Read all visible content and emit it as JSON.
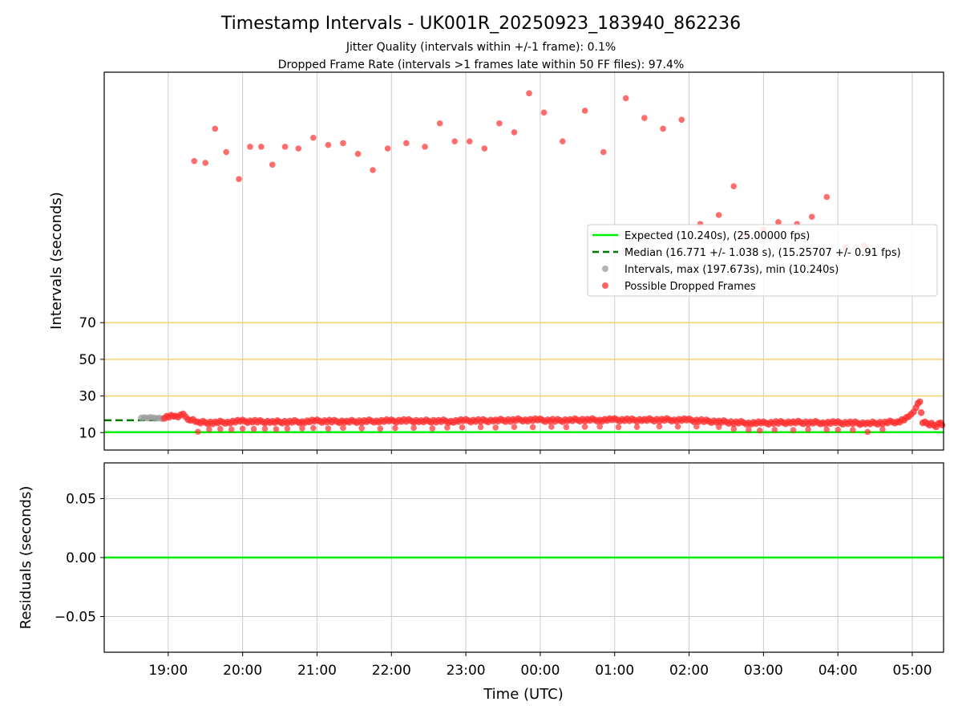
{
  "chart_data": {
    "type": "scatter",
    "title": "Timestamp Intervals - UK001R_20250923_183940_862236",
    "subtitles": [
      "Jitter Quality (intervals within +/-1 frame): 0.1%",
      "Dropped Frame Rate (intervals >1 frames late within 50 FF files): 97.4%"
    ],
    "xlabel": "Time (UTC)",
    "x_ticks": [
      "19:00",
      "20:00",
      "21:00",
      "22:00",
      "23:00",
      "00:00",
      "01:00",
      "02:00",
      "03:00",
      "04:00",
      "05:00"
    ],
    "xlim_hours": [
      18.14,
      29.42
    ],
    "x_tick_hours": [
      19,
      20,
      21,
      22,
      23,
      24,
      25,
      26,
      27,
      28,
      29
    ],
    "grid": true,
    "legend_position": "center-right",
    "panels": [
      {
        "name": "intervals",
        "ylabel": "Intervals (seconds)",
        "y_ticks": [
          10,
          30,
          50,
          70
        ],
        "y_scale": "broken-upper",
        "reference_lines": [
          {
            "y": 30,
            "color": "#f2d57a"
          },
          {
            "y": 50,
            "color": "#f2d57a"
          },
          {
            "y": 70,
            "color": "#f2d57a"
          }
        ],
        "series": [
          {
            "name": "Expected (10.240s), (25.00000 fps)",
            "kind": "line",
            "y": 10.24,
            "color": "#00ee00"
          },
          {
            "name": "Median (16.771 +/- 1.038 s), (15.25707 +/- 0.91 fps)",
            "kind": "dashed-line",
            "y": 16.771,
            "x_end_hours": 18.85,
            "color": "#007700"
          },
          {
            "name": "Intervals, max (197.673s), min (10.240s)",
            "kind": "scatter",
            "color": "#999999",
            "points": [
              [
                18.64,
                18.0
              ],
              [
                18.68,
                18.2
              ],
              [
                18.72,
                17.9
              ],
              [
                18.76,
                18.3
              ],
              [
                18.8,
                18.1
              ],
              [
                18.84,
                17.8
              ],
              [
                18.88,
                18.0
              ],
              [
                18.92,
                17.6
              ]
            ]
          },
          {
            "name": "Possible Dropped Frames",
            "kind": "scatter",
            "color": "#ff3030",
            "band": [
              [
                18.95,
                18.5
              ],
              [
                19.1,
                19.0
              ],
              [
                19.2,
                19.5
              ],
              [
                19.3,
                17.0
              ],
              [
                19.4,
                15.5
              ],
              [
                19.6,
                15.5
              ],
              [
                19.8,
                15.8
              ],
              [
                20.0,
                16.2
              ],
              [
                20.2,
                16.0
              ],
              [
                20.4,
                15.8
              ],
              [
                20.6,
                15.9
              ],
              [
                20.8,
                16.0
              ],
              [
                21.0,
                16.3
              ],
              [
                21.2,
                16.1
              ],
              [
                21.4,
                16.0
              ],
              [
                21.6,
                16.2
              ],
              [
                21.8,
                16.4
              ],
              [
                22.0,
                16.3
              ],
              [
                22.2,
                16.5
              ],
              [
                22.4,
                16.2
              ],
              [
                22.6,
                16.4
              ],
              [
                22.8,
                16.2
              ],
              [
                23.0,
                16.5
              ],
              [
                23.2,
                16.4
              ],
              [
                23.4,
                16.6
              ],
              [
                23.6,
                16.8
              ],
              [
                23.8,
                17.0
              ],
              [
                24.0,
                16.8
              ],
              [
                24.2,
                16.5
              ],
              [
                24.4,
                16.8
              ],
              [
                24.6,
                17.0
              ],
              [
                24.8,
                16.9
              ],
              [
                25.0,
                17.0
              ],
              [
                25.2,
                16.8
              ],
              [
                25.4,
                16.9
              ],
              [
                25.6,
                17.0
              ],
              [
                25.8,
                17.0
              ],
              [
                26.0,
                16.8
              ],
              [
                26.2,
                16.3
              ],
              [
                26.4,
                16.0
              ],
              [
                26.6,
                15.6
              ],
              [
                26.8,
                15.3
              ],
              [
                27.0,
                15.2
              ],
              [
                27.2,
                15.4
              ],
              [
                27.4,
                15.6
              ],
              [
                27.6,
                15.5
              ],
              [
                27.8,
                15.4
              ],
              [
                28.0,
                15.3
              ],
              [
                28.2,
                15.2
              ],
              [
                28.4,
                15.0
              ],
              [
                28.6,
                15.4
              ],
              [
                28.8,
                16.0
              ],
              [
                28.95,
                18.0
              ],
              [
                29.05,
                24.0
              ],
              [
                29.1,
                26.5
              ],
              [
                29.14,
                16.0
              ],
              [
                29.2,
                15.0
              ],
              [
                29.26,
                14.5
              ],
              [
                29.32,
                13.5
              ],
              [
                29.38,
                15.0
              ],
              [
                29.42,
                14.0
              ]
            ],
            "low_points": [
              [
                19.4,
                10.5
              ],
              [
                19.55,
                11.8
              ],
              [
                19.7,
                12.0
              ],
              [
                19.85,
                11.8
              ],
              [
                20.0,
                12.2
              ],
              [
                20.15,
                12.0
              ],
              [
                20.3,
                12.1
              ],
              [
                20.45,
                11.9
              ],
              [
                20.6,
                12.2
              ],
              [
                20.8,
                12.4
              ],
              [
                20.95,
                12.5
              ],
              [
                21.15,
                12.3
              ],
              [
                21.35,
                12.6
              ],
              [
                21.6,
                12.4
              ],
              [
                21.85,
                12.2
              ],
              [
                22.05,
                12.5
              ],
              [
                22.3,
                12.6
              ],
              [
                22.55,
                12.3
              ],
              [
                22.75,
                12.8
              ],
              [
                22.95,
                12.9
              ],
              [
                23.2,
                13.0
              ],
              [
                23.4,
                12.8
              ],
              [
                23.65,
                13.1
              ],
              [
                23.9,
                13.0
              ],
              [
                24.15,
                13.2
              ],
              [
                24.35,
                13.0
              ],
              [
                24.6,
                13.2
              ],
              [
                24.8,
                13.3
              ],
              [
                25.05,
                13.0
              ],
              [
                25.3,
                13.1
              ],
              [
                25.6,
                13.4
              ],
              [
                25.85,
                13.3
              ],
              [
                26.1,
                13.4
              ],
              [
                26.4,
                13.1
              ],
              [
                26.6,
                12.0
              ],
              [
                26.8,
                11.6
              ],
              [
                26.95,
                11.2
              ],
              [
                27.15,
                11.6
              ],
              [
                27.4,
                11.4
              ],
              [
                27.6,
                11.8
              ],
              [
                27.85,
                11.7
              ],
              [
                28.0,
                11.6
              ],
              [
                28.2,
                11.5
              ],
              [
                28.4,
                10.4
              ],
              [
                28.6,
                11.8
              ]
            ],
            "high_points": [
              [
                19.35,
                160.0
              ],
              [
                19.5,
                159.0
              ],
              [
                19.63,
                178.0
              ],
              [
                19.78,
                165.0
              ],
              [
                19.95,
                150.0
              ],
              [
                20.1,
                168.0
              ],
              [
                20.25,
                168.0
              ],
              [
                20.4,
                158.0
              ],
              [
                20.57,
                168.0
              ],
              [
                20.75,
                167.0
              ],
              [
                20.95,
                173.0
              ],
              [
                21.15,
                169.0
              ],
              [
                21.35,
                170.0
              ],
              [
                21.55,
                164.0
              ],
              [
                21.75,
                155.0
              ],
              [
                21.95,
                167.0
              ],
              [
                22.2,
                170.0
              ],
              [
                22.45,
                168.0
              ],
              [
                22.65,
                181.0
              ],
              [
                22.85,
                171.0
              ],
              [
                23.05,
                171.0
              ],
              [
                23.25,
                167.0
              ],
              [
                23.45,
                181.0
              ],
              [
                23.65,
                176.0
              ],
              [
                23.85,
                197.7
              ],
              [
                24.05,
                187.0
              ],
              [
                24.3,
                171.0
              ],
              [
                24.6,
                188.0
              ],
              [
                24.85,
                165.0
              ],
              [
                25.15,
                195.0
              ],
              [
                25.4,
                184.0
              ],
              [
                25.65,
                178.0
              ],
              [
                25.9,
                183.0
              ],
              [
                26.15,
                125.0
              ],
              [
                26.4,
                130.0
              ],
              [
                26.6,
                146.0
              ],
              [
                26.75,
                118.0
              ],
              [
                27.0,
                122.0
              ],
              [
                27.2,
                126.0
              ],
              [
                27.45,
                125.0
              ],
              [
                27.65,
                129.0
              ],
              [
                27.85,
                140.0
              ],
              [
                28.1,
                112.0
              ],
              [
                28.35,
                113.0
              ]
            ]
          }
        ]
      },
      {
        "name": "residuals",
        "ylabel": "Residuals (seconds)",
        "y_ticks": [
          "0.05",
          "0.00",
          "−0.05"
        ],
        "y_tick_values": [
          0.05,
          0.0,
          -0.05
        ],
        "ylim": [
          -0.08,
          0.08
        ],
        "series": [
          {
            "name": "Expected",
            "kind": "line",
            "y": 0.0,
            "color": "#00ee00"
          }
        ]
      }
    ],
    "legend": [
      {
        "label": "Expected (10.240s), (25.00000 fps)",
        "symbol": "line",
        "color": "#00ee00"
      },
      {
        "label": "Median (16.771 +/- 1.038 s), (15.25707 +/- 0.91 fps)",
        "symbol": "dashed",
        "color": "#007700"
      },
      {
        "label": "Intervals, max (197.673s), min (10.240s)",
        "symbol": "dot",
        "color": "#999999"
      },
      {
        "label": "Possible Dropped Frames",
        "symbol": "dot",
        "color": "#ff3030"
      }
    ]
  }
}
